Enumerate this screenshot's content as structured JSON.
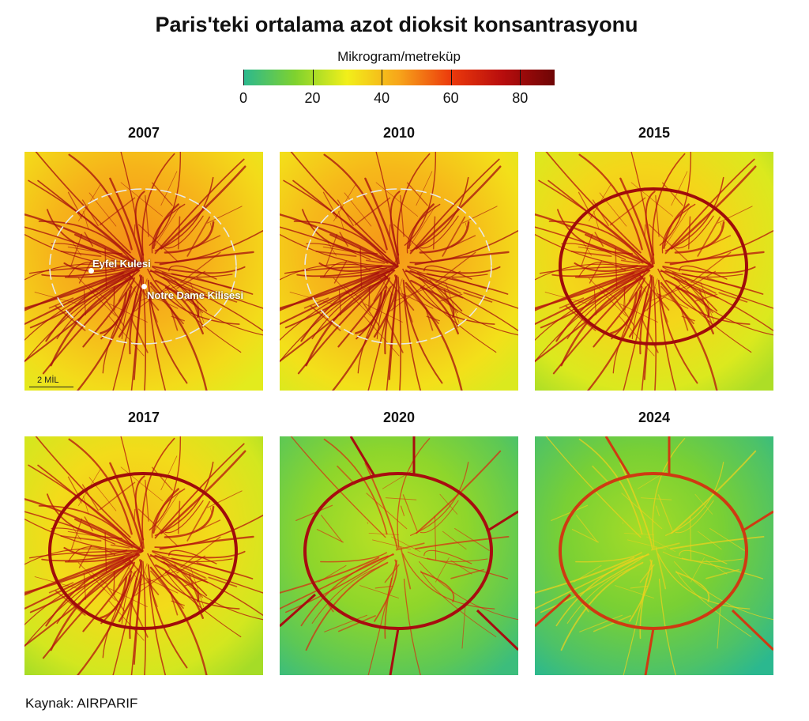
{
  "title": "Paris'teki ortalama azot dioksit konsantrasyonu",
  "legend": {
    "unit": "Mikrogram/metreküp",
    "min": 0,
    "max": 90,
    "ticks": [
      "0",
      "20",
      "40",
      "60",
      "80"
    ],
    "colors": [
      "#2bb88f",
      "#7fd22e",
      "#f2ef1a",
      "#f7a51a",
      "#ec3a0c",
      "#b80d0d",
      "#6e0505"
    ]
  },
  "panels": [
    {
      "year": "2007",
      "base_level": 40,
      "road_color": "#a50d0d",
      "ring_color": "#e8e8e8"
    },
    {
      "year": "2010",
      "base_level": 39,
      "road_color": "#a50d0d",
      "ring_color": "#e8e8e8"
    },
    {
      "year": "2015",
      "base_level": 33,
      "road_color": "#b4120e",
      "ring_color": "#a00b0b"
    },
    {
      "year": "2017",
      "base_level": 32,
      "road_color": "#b4120e",
      "ring_color": "#a00b0b"
    },
    {
      "year": "2020",
      "base_level": 15,
      "road_color": "#d8260f",
      "ring_color": "#a80c10"
    },
    {
      "year": "2024",
      "base_level": 12,
      "road_color": "#f2d21c",
      "ring_color": "#cf3a12"
    }
  ],
  "landmarks": [
    {
      "name": "Eyfel Kulesi"
    },
    {
      "name": "Notre Dame Kilisesi"
    }
  ],
  "scale": {
    "label": "2 MİL"
  },
  "source": "Kaynak: AIRPARIF"
}
